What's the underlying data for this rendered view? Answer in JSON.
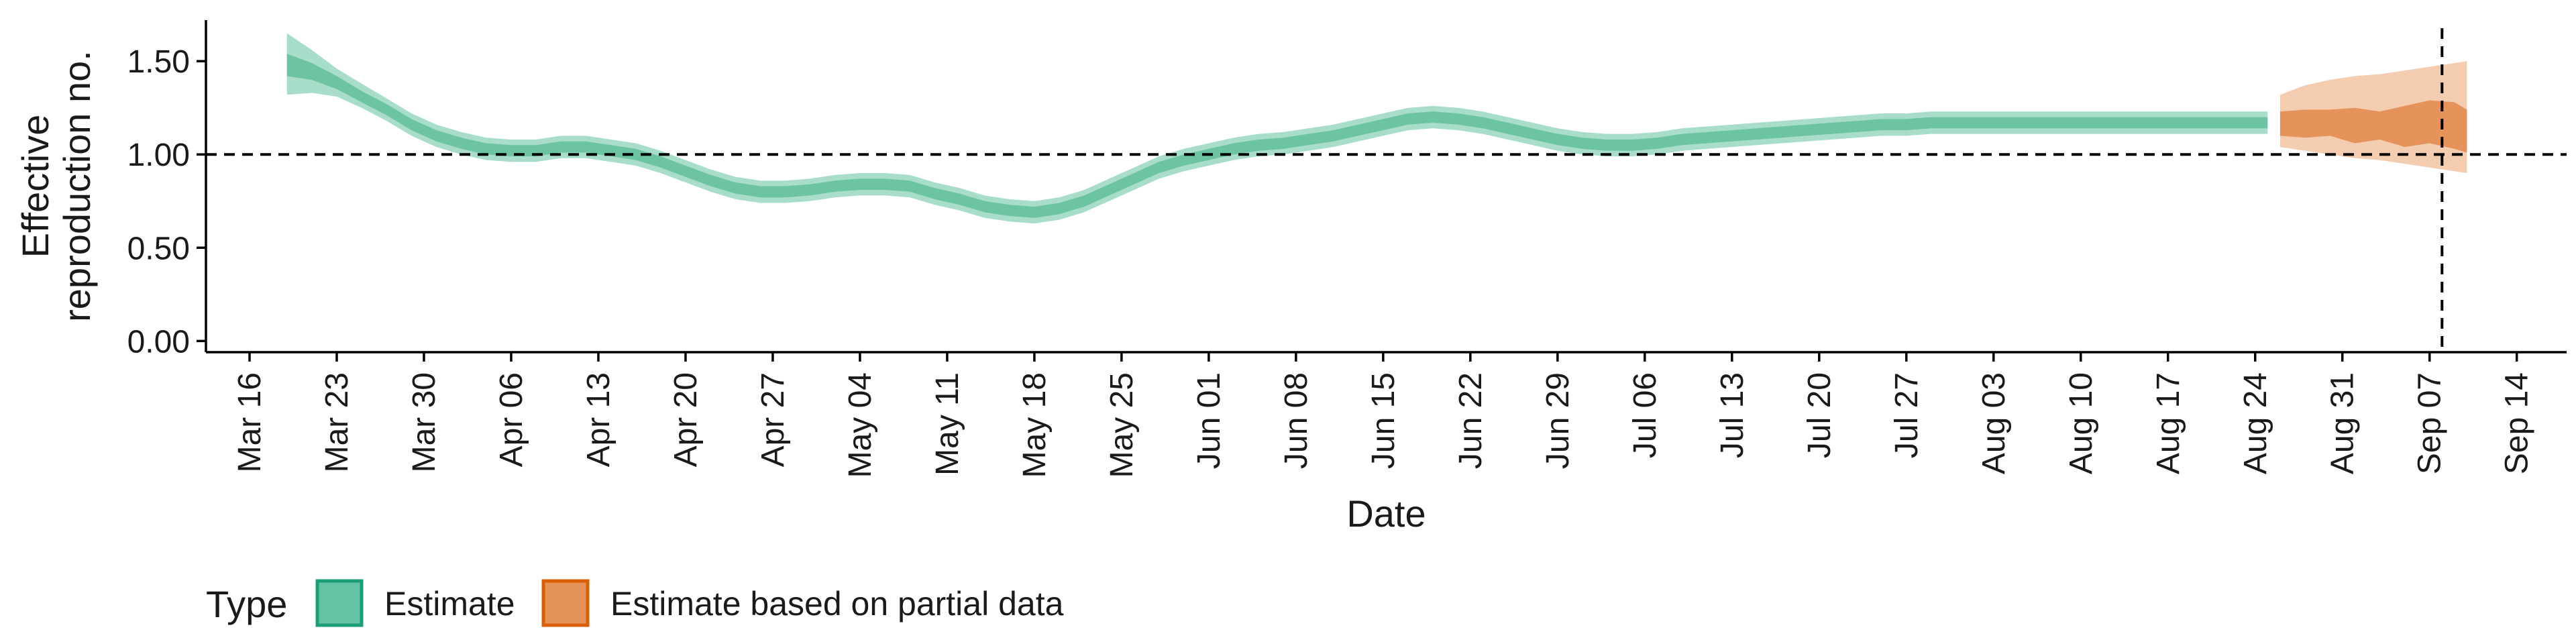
{
  "chart_data": {
    "type": "area",
    "xlabel": "Date",
    "ylabel": "Effective\nreproduction no.",
    "x_tick_labels": [
      "Mar 16",
      "Mar 23",
      "Mar 30",
      "Apr 06",
      "Apr 13",
      "Apr 20",
      "Apr 27",
      "May 04",
      "May 11",
      "May 18",
      "May 25",
      "Jun 01",
      "Jun 08",
      "Jun 15",
      "Jun 22",
      "Jun 29",
      "Jul 06",
      "Jul 13",
      "Jul 20",
      "Jul 27",
      "Aug 03",
      "Aug 10",
      "Aug 17",
      "Aug 24",
      "Aug 31",
      "Sep 07",
      "Sep 14"
    ],
    "x_range_days": [
      -3.5,
      186
    ],
    "y_ticks": [
      0.0,
      0.5,
      1.0,
      1.5
    ],
    "y_tick_labels": [
      "0.00",
      "0.50",
      "1.00",
      "1.50"
    ],
    "ylim": [
      -0.06,
      1.72
    ],
    "reference_hline": 1.0,
    "reference_vline_date": "Sep 08",
    "grid": false,
    "legend_position": "bottom-left",
    "legend": {
      "title": "Type",
      "entries": [
        {
          "label": "Estimate",
          "fill": "#66c2a5",
          "border": "#1b9e77"
        },
        {
          "label": "Estimate based on partial data",
          "fill": "#e5935a",
          "border": "#d95f02"
        }
      ]
    },
    "colors": {
      "estimate_outer": "#a8ddc9",
      "estimate_inner": "#6cc4a2",
      "partial_outer": "#f4ccb0",
      "partial_inner": "#e5935a"
    },
    "series": [
      {
        "name": "Estimate",
        "x_days": [
          3,
          5,
          7,
          9,
          11,
          13,
          15,
          17,
          19,
          21,
          23,
          25,
          27,
          29,
          31,
          33,
          35,
          37,
          39,
          41,
          43,
          45,
          47,
          49,
          51,
          53,
          55,
          57,
          59,
          61,
          63,
          65,
          67,
          69,
          71,
          73,
          75,
          77,
          79,
          81,
          83,
          85,
          87,
          89,
          91,
          93,
          95,
          97,
          99,
          101,
          103,
          105,
          107,
          109,
          111,
          113,
          115,
          117,
          119,
          121,
          123,
          125,
          127,
          129,
          131,
          133,
          135,
          137,
          139,
          141,
          143,
          145,
          147,
          149,
          151,
          153,
          155,
          162
        ],
        "median": [
          1.48,
          1.44,
          1.38,
          1.31,
          1.24,
          1.16,
          1.1,
          1.06,
          1.03,
          1.02,
          1.02,
          1.04,
          1.04,
          1.02,
          1.0,
          0.96,
          0.91,
          0.86,
          0.82,
          0.8,
          0.8,
          0.81,
          0.83,
          0.84,
          0.84,
          0.83,
          0.79,
          0.76,
          0.72,
          0.7,
          0.69,
          0.71,
          0.75,
          0.81,
          0.87,
          0.93,
          0.97,
          1.0,
          1.03,
          1.05,
          1.06,
          1.08,
          1.1,
          1.13,
          1.16,
          1.19,
          1.2,
          1.19,
          1.17,
          1.14,
          1.11,
          1.08,
          1.06,
          1.05,
          1.05,
          1.06,
          1.08,
          1.09,
          1.1,
          1.11,
          1.12,
          1.13,
          1.14,
          1.15,
          1.16,
          1.16,
          1.17,
          1.17,
          1.17,
          1.17,
          1.17,
          1.17,
          1.17,
          1.17,
          1.17,
          1.17,
          1.17,
          1.17
        ],
        "inner": [
          [
            1.42,
            1.54
          ],
          [
            1.4,
            1.49
          ],
          [
            1.35,
            1.42
          ],
          [
            1.28,
            1.34
          ],
          [
            1.21,
            1.27
          ],
          [
            1.13,
            1.19
          ],
          [
            1.07,
            1.13
          ],
          [
            1.03,
            1.09
          ],
          [
            1.0,
            1.06
          ],
          [
            0.99,
            1.05
          ],
          [
            0.99,
            1.05
          ],
          [
            1.01,
            1.07
          ],
          [
            1.01,
            1.07
          ],
          [
            0.99,
            1.05
          ],
          [
            0.97,
            1.03
          ],
          [
            0.93,
            0.99
          ],
          [
            0.88,
            0.94
          ],
          [
            0.83,
            0.89
          ],
          [
            0.79,
            0.85
          ],
          [
            0.77,
            0.83
          ],
          [
            0.77,
            0.83
          ],
          [
            0.78,
            0.84
          ],
          [
            0.8,
            0.86
          ],
          [
            0.81,
            0.87
          ],
          [
            0.81,
            0.87
          ],
          [
            0.8,
            0.86
          ],
          [
            0.76,
            0.82
          ],
          [
            0.73,
            0.79
          ],
          [
            0.69,
            0.75
          ],
          [
            0.67,
            0.73
          ],
          [
            0.66,
            0.72
          ],
          [
            0.68,
            0.74
          ],
          [
            0.72,
            0.78
          ],
          [
            0.78,
            0.84
          ],
          [
            0.84,
            0.9
          ],
          [
            0.9,
            0.96
          ],
          [
            0.94,
            1.0
          ],
          [
            0.97,
            1.03
          ],
          [
            1.0,
            1.06
          ],
          [
            1.02,
            1.08
          ],
          [
            1.03,
            1.09
          ],
          [
            1.05,
            1.11
          ],
          [
            1.07,
            1.13
          ],
          [
            1.1,
            1.16
          ],
          [
            1.13,
            1.19
          ],
          [
            1.16,
            1.22
          ],
          [
            1.17,
            1.23
          ],
          [
            1.16,
            1.22
          ],
          [
            1.14,
            1.2
          ],
          [
            1.11,
            1.17
          ],
          [
            1.08,
            1.14
          ],
          [
            1.05,
            1.11
          ],
          [
            1.03,
            1.09
          ],
          [
            1.02,
            1.08
          ],
          [
            1.02,
            1.08
          ],
          [
            1.03,
            1.09
          ],
          [
            1.05,
            1.11
          ],
          [
            1.06,
            1.12
          ],
          [
            1.07,
            1.13
          ],
          [
            1.08,
            1.14
          ],
          [
            1.09,
            1.15
          ],
          [
            1.1,
            1.16
          ],
          [
            1.11,
            1.17
          ],
          [
            1.12,
            1.18
          ],
          [
            1.13,
            1.19
          ],
          [
            1.13,
            1.19
          ],
          [
            1.14,
            1.2
          ],
          [
            1.14,
            1.2
          ],
          [
            1.14,
            1.2
          ],
          [
            1.14,
            1.2
          ],
          [
            1.14,
            1.2
          ],
          [
            1.14,
            1.2
          ],
          [
            1.14,
            1.2
          ],
          [
            1.14,
            1.2
          ],
          [
            1.14,
            1.2
          ],
          [
            1.14,
            1.2
          ],
          [
            1.14,
            1.2
          ],
          [
            1.14,
            1.2
          ]
        ],
        "outer": [
          [
            1.32,
            1.65
          ],
          [
            1.33,
            1.56
          ],
          [
            1.31,
            1.46
          ],
          [
            1.25,
            1.38
          ],
          [
            1.18,
            1.3
          ],
          [
            1.1,
            1.22
          ],
          [
            1.04,
            1.16
          ],
          [
            1.0,
            1.12
          ],
          [
            0.97,
            1.09
          ],
          [
            0.96,
            1.08
          ],
          [
            0.96,
            1.08
          ],
          [
            0.98,
            1.1
          ],
          [
            0.98,
            1.1
          ],
          [
            0.96,
            1.08
          ],
          [
            0.94,
            1.06
          ],
          [
            0.9,
            1.02
          ],
          [
            0.85,
            0.97
          ],
          [
            0.8,
            0.92
          ],
          [
            0.76,
            0.88
          ],
          [
            0.74,
            0.86
          ],
          [
            0.74,
            0.86
          ],
          [
            0.75,
            0.87
          ],
          [
            0.77,
            0.89
          ],
          [
            0.78,
            0.9
          ],
          [
            0.78,
            0.9
          ],
          [
            0.77,
            0.89
          ],
          [
            0.73,
            0.85
          ],
          [
            0.7,
            0.82
          ],
          [
            0.66,
            0.78
          ],
          [
            0.64,
            0.76
          ],
          [
            0.63,
            0.75
          ],
          [
            0.65,
            0.77
          ],
          [
            0.69,
            0.81
          ],
          [
            0.75,
            0.87
          ],
          [
            0.81,
            0.93
          ],
          [
            0.87,
            0.99
          ],
          [
            0.91,
            1.03
          ],
          [
            0.94,
            1.06
          ],
          [
            0.97,
            1.09
          ],
          [
            0.99,
            1.11
          ],
          [
            1.0,
            1.12
          ],
          [
            1.02,
            1.14
          ],
          [
            1.04,
            1.16
          ],
          [
            1.07,
            1.19
          ],
          [
            1.1,
            1.22
          ],
          [
            1.13,
            1.25
          ],
          [
            1.14,
            1.26
          ],
          [
            1.13,
            1.25
          ],
          [
            1.11,
            1.23
          ],
          [
            1.08,
            1.2
          ],
          [
            1.05,
            1.17
          ],
          [
            1.02,
            1.14
          ],
          [
            1.0,
            1.12
          ],
          [
            0.99,
            1.11
          ],
          [
            0.99,
            1.11
          ],
          [
            1.0,
            1.12
          ],
          [
            1.02,
            1.14
          ],
          [
            1.03,
            1.15
          ],
          [
            1.04,
            1.16
          ],
          [
            1.05,
            1.17
          ],
          [
            1.06,
            1.18
          ],
          [
            1.07,
            1.19
          ],
          [
            1.08,
            1.2
          ],
          [
            1.09,
            1.21
          ],
          [
            1.1,
            1.22
          ],
          [
            1.1,
            1.22
          ],
          [
            1.11,
            1.23
          ],
          [
            1.11,
            1.23
          ],
          [
            1.11,
            1.23
          ],
          [
            1.11,
            1.23
          ],
          [
            1.11,
            1.23
          ],
          [
            1.11,
            1.23
          ],
          [
            1.11,
            1.23
          ],
          [
            1.11,
            1.23
          ],
          [
            1.11,
            1.23
          ],
          [
            1.11,
            1.23
          ],
          [
            1.11,
            1.23
          ],
          [
            1.11,
            1.23
          ]
        ]
      },
      {
        "name": "Estimate based on partial data",
        "x_days": [
          163,
          165,
          167,
          169,
          171,
          173,
          175,
          177,
          178
        ],
        "median": [
          1.17,
          1.16,
          1.17,
          1.16,
          1.17,
          1.14,
          1.15,
          1.13,
          1.1
        ],
        "inner": [
          [
            1.1,
            1.23
          ],
          [
            1.09,
            1.24
          ],
          [
            1.1,
            1.24
          ],
          [
            1.06,
            1.25
          ],
          [
            1.08,
            1.23
          ],
          [
            1.04,
            1.26
          ],
          [
            1.06,
            1.29
          ],
          [
            1.03,
            1.28
          ],
          [
            1.01,
            1.24
          ]
        ],
        "outer": [
          [
            1.04,
            1.32
          ],
          [
            1.02,
            1.37
          ],
          [
            1.0,
            1.4
          ],
          [
            0.98,
            1.42
          ],
          [
            0.97,
            1.43
          ],
          [
            0.95,
            1.45
          ],
          [
            0.93,
            1.47
          ],
          [
            0.91,
            1.49
          ],
          [
            0.9,
            1.5
          ]
        ]
      }
    ]
  }
}
